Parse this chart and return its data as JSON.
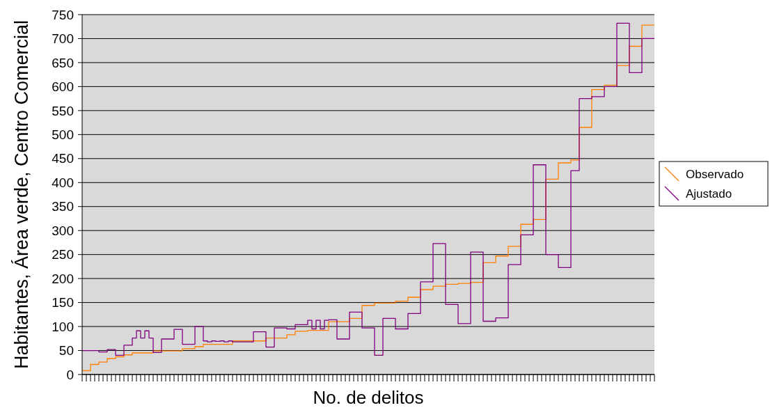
{
  "chart_data": {
    "type": "step",
    "xlabel": "No. de delitos",
    "ylabel": "Habitantes, Área verde, Centro Comercial",
    "categories": [
      null,
      null,
      null,
      null,
      null,
      null,
      null,
      null,
      null,
      null,
      null,
      null,
      null,
      null,
      null,
      null,
      null,
      null,
      null,
      null,
      null,
      null,
      null,
      null,
      null,
      null,
      null,
      null,
      null,
      null,
      null,
      null,
      null,
      null,
      null,
      null,
      null,
      null,
      null,
      null,
      null,
      null,
      null,
      null,
      null,
      null,
      null,
      null,
      null,
      null,
      null,
      null,
      null,
      null,
      null,
      null,
      null,
      null,
      null,
      null,
      null,
      null,
      null,
      null,
      null,
      null,
      null,
      null,
      null,
      null,
      null,
      null,
      null,
      null,
      null,
      null,
      null,
      null,
      null,
      null,
      null,
      null,
      null,
      null,
      null,
      null,
      null,
      null,
      null,
      null,
      null,
      null,
      null,
      null,
      null,
      null,
      null,
      null,
      null,
      null,
      null,
      null,
      null,
      null,
      null,
      null,
      null,
      null,
      null,
      null,
      null,
      null,
      null,
      null,
      null,
      null,
      null,
      null,
      null,
      null,
      null,
      null,
      null,
      null,
      null,
      null,
      null,
      null,
      null,
      null,
      null,
      null,
      null,
      null,
      null,
      null,
      null,
      null
    ],
    "series": [
      {
        "name": "Observado",
        "color": "#ff7f00",
        "values": [
          8,
          8,
          21,
          21,
          26,
          26,
          33,
          33,
          37,
          37,
          41,
          41,
          45,
          45,
          45,
          45,
          45,
          49,
          49,
          49,
          49,
          49,
          49,
          49,
          54,
          54,
          54,
          58,
          58,
          63,
          63,
          63,
          63,
          63,
          63,
          63,
          70,
          70,
          70,
          70,
          70,
          70,
          70,
          70,
          76,
          76,
          76,
          76,
          76,
          83,
          83,
          90,
          90,
          90,
          92,
          92,
          92,
          92,
          92,
          110,
          110,
          110,
          110,
          110,
          117,
          117,
          117,
          144,
          144,
          144,
          149,
          149,
          149,
          149,
          149,
          153,
          153,
          153,
          161,
          161,
          161,
          177,
          177,
          177,
          184,
          184,
          184,
          188,
          188,
          188,
          190,
          190,
          190,
          192,
          192,
          192,
          233,
          233,
          233,
          247,
          247,
          247,
          267,
          267,
          267,
          313,
          313,
          313,
          323,
          323,
          323,
          407,
          407,
          407,
          441,
          441,
          441,
          447,
          447,
          515,
          515,
          515,
          594,
          594,
          594,
          603,
          603,
          603,
          644,
          644,
          644,
          684,
          684,
          684,
          728,
          728,
          728,
          728
        ]
      },
      {
        "name": "Ajustado",
        "color": "#800080",
        "values": [
          50,
          50,
          50,
          50,
          47,
          47,
          52,
          52,
          40,
          40,
          61,
          61,
          76,
          91,
          76,
          91,
          76,
          46,
          46,
          74,
          74,
          74,
          94,
          94,
          63,
          63,
          63,
          100,
          100,
          70,
          68,
          70,
          69,
          70,
          68,
          70,
          68,
          68,
          68,
          68,
          68,
          89,
          89,
          89,
          57,
          57,
          97,
          97,
          97,
          95,
          95,
          104,
          104,
          104,
          113,
          95,
          113,
          95,
          113,
          114,
          114,
          74,
          74,
          74,
          130,
          130,
          130,
          97,
          97,
          97,
          40,
          40,
          117,
          117,
          117,
          95,
          95,
          95,
          127,
          127,
          127,
          193,
          193,
          193,
          273,
          273,
          273,
          146,
          146,
          146,
          106,
          106,
          106,
          255,
          255,
          255,
          111,
          111,
          111,
          118,
          118,
          118,
          229,
          229,
          229,
          291,
          291,
          291,
          437,
          437,
          437,
          250,
          250,
          250,
          223,
          223,
          223,
          425,
          425,
          575,
          575,
          575,
          579,
          579,
          579,
          600,
          600,
          600,
          732,
          732,
          732,
          629,
          629,
          629,
          700,
          700,
          700,
          700
        ]
      }
    ],
    "ylim": [
      0,
      750
    ],
    "yticks": [
      0,
      50,
      100,
      150,
      200,
      250,
      300,
      350,
      400,
      450,
      500,
      550,
      600,
      650,
      700,
      750
    ],
    "grid": "y",
    "legend": "right",
    "tick_labels": "y",
    "line_style": "solid"
  }
}
